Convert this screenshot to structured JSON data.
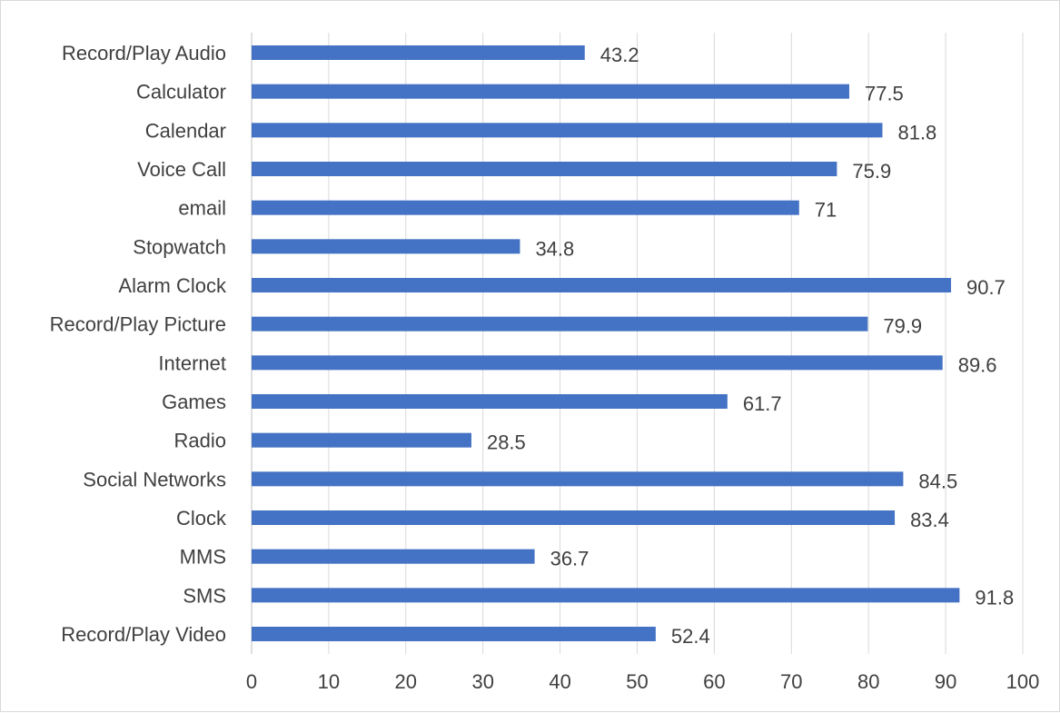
{
  "chart_data": {
    "type": "bar",
    "orientation": "horizontal",
    "categories": [
      "Record/Play Audio",
      "Calculator",
      "Calendar",
      "Voice Call",
      "email",
      "Stopwatch",
      "Alarm Clock",
      "Record/Play Picture",
      "Internet",
      "Games",
      "Radio",
      "Social Networks",
      "Clock",
      "MMS",
      "SMS",
      "Record/Play Video"
    ],
    "values": [
      43.2,
      77.5,
      81.8,
      75.9,
      71,
      34.8,
      90.7,
      79.9,
      89.6,
      61.7,
      28.5,
      84.5,
      83.4,
      36.7,
      91.8,
      52.4
    ],
    "data_labels": [
      "43.2",
      "77.5",
      "81.8",
      "75.9",
      "71",
      "34.8",
      "90.7",
      "79.9",
      "89.6",
      "61.7",
      "28.5",
      "84.5",
      "83.4",
      "36.7",
      "91.8",
      "52.4"
    ],
    "x_ticks": [
      "0",
      "10",
      "20",
      "30",
      "40",
      "50",
      "60",
      "70",
      "80",
      "90",
      "100"
    ],
    "xlim": [
      0,
      100
    ],
    "title": "",
    "xlabel": "",
    "ylabel": "",
    "grid": true,
    "bar_color": "#4472C4"
  }
}
